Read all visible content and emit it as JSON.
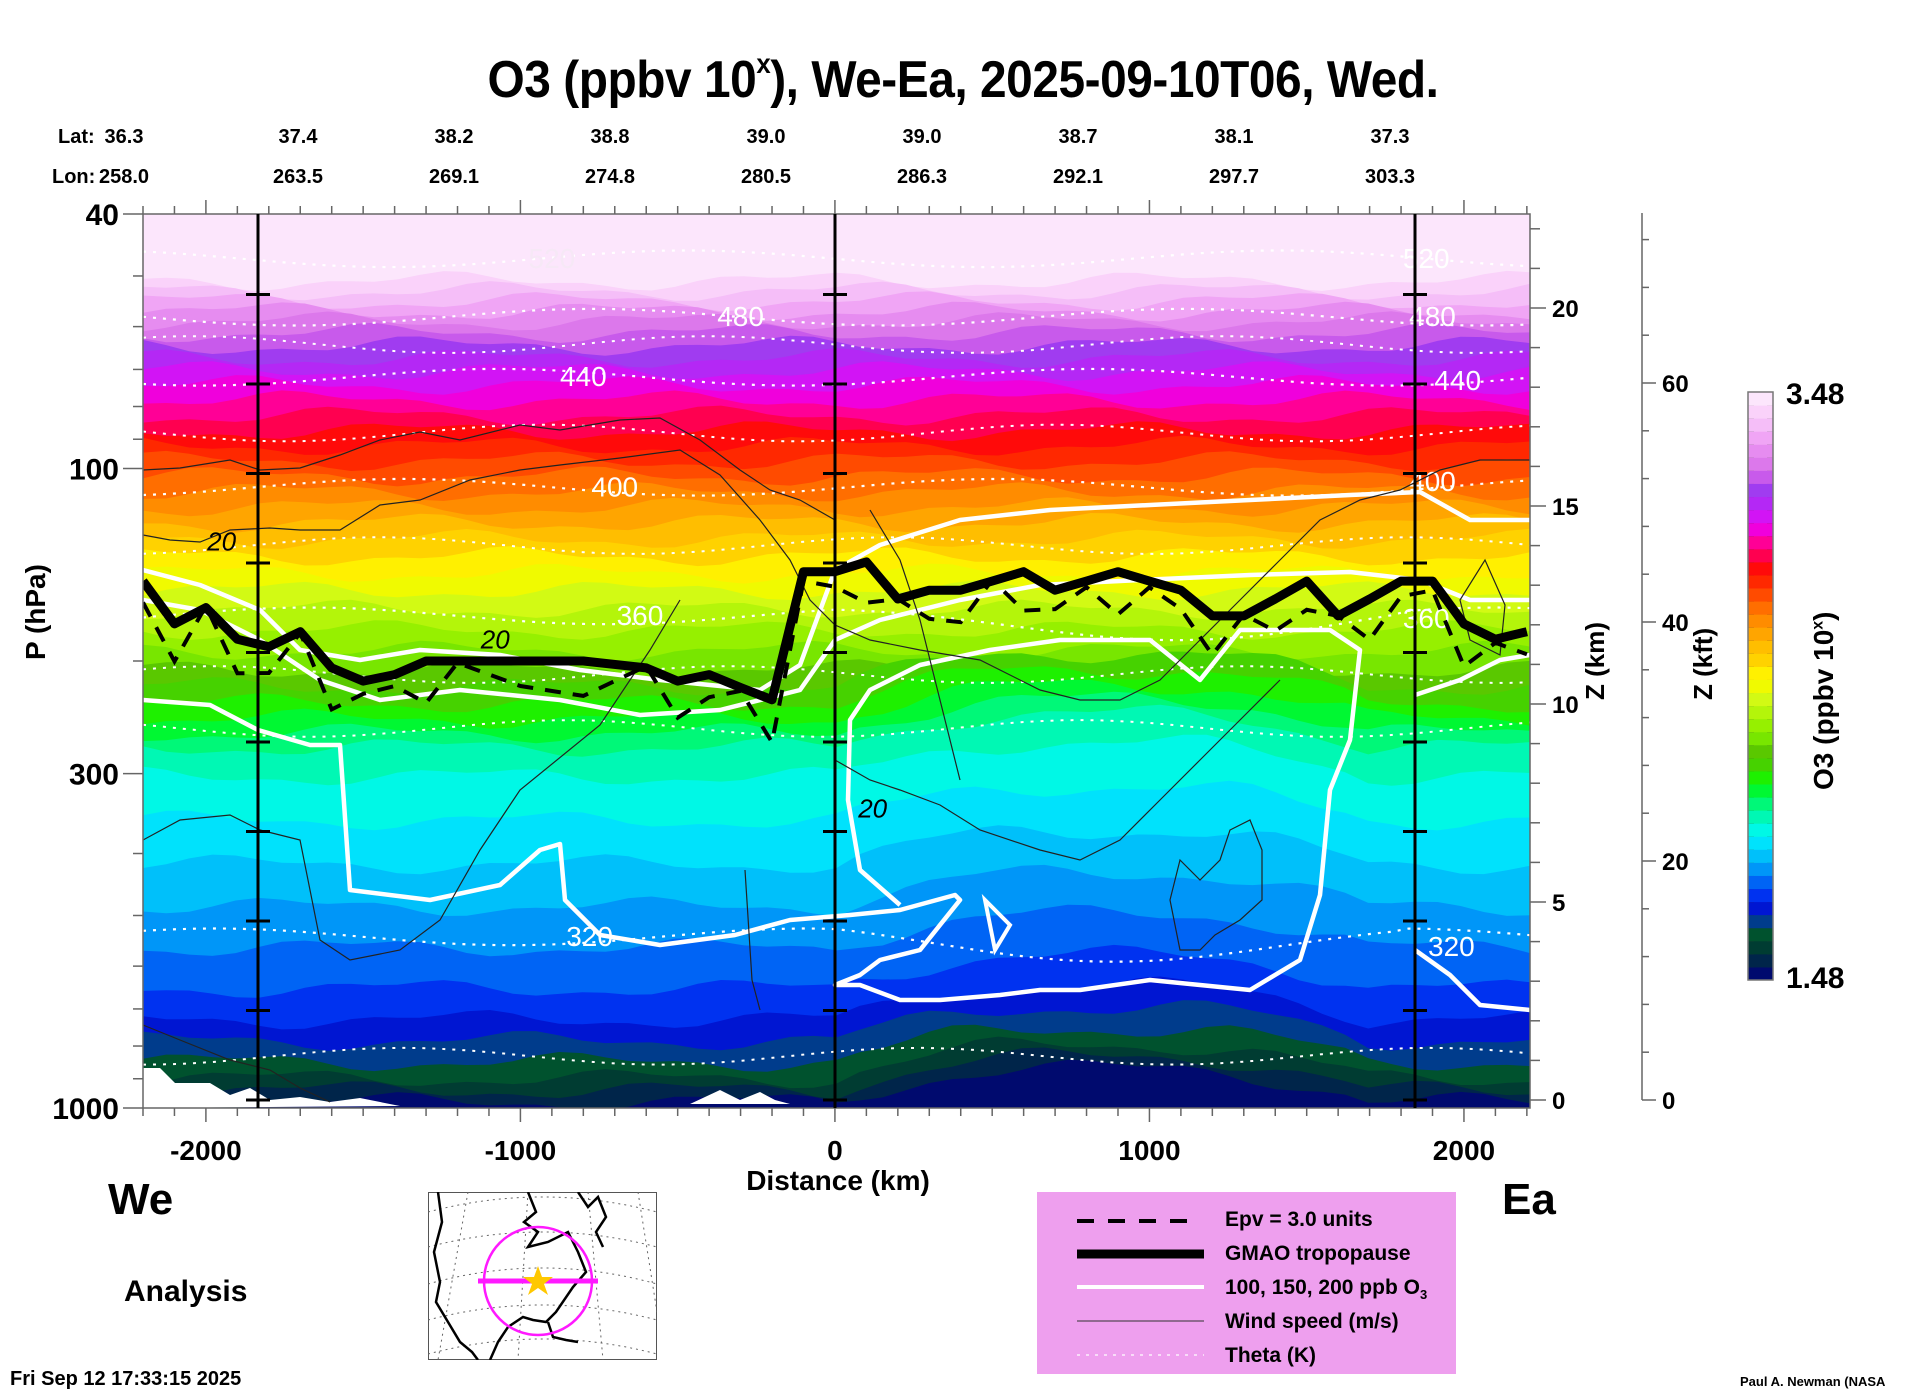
{
  "title": {
    "prefix": "O3 (ppbv 10",
    "sup": "x",
    "suffix": "), We-Ea, 2025-09-10T06, Wed."
  },
  "coords": {
    "lat_label": "Lat:",
    "lon_label": "Lon:",
    "lat": [
      "36.3",
      "37.4",
      "38.2",
      "38.8",
      "39.0",
      "39.0",
      "38.7",
      "38.1",
      "37.3"
    ],
    "lon": [
      "258.0",
      "263.5",
      "269.1",
      "274.8",
      "280.5",
      "286.3",
      "292.1",
      "297.7",
      "303.3"
    ]
  },
  "labels": {
    "west": "We",
    "east": "Ea",
    "analysis": "Analysis",
    "timestamp": "Fri Sep 12 17:33:15 2025",
    "credit": "Paul A. Newman (NASA"
  },
  "legend": {
    "items": [
      {
        "label": "Epv = 3.0 units",
        "style": "dashed-black"
      },
      {
        "label": "GMAO tropopause",
        "style": "thick-black"
      },
      {
        "label": "100, 150, 200 ppb O",
        "sub": "3",
        "style": "white"
      },
      {
        "label": "Wind speed (m/s)",
        "style": "thin-black"
      },
      {
        "label": "Theta (K)",
        "style": "dotted-white"
      }
    ],
    "background": "#ee9fee"
  },
  "colorbar": {
    "title_prefix": "O3 (ppbv 10",
    "title_sup": "x",
    "title_suffix": ")",
    "max_label": "3.48",
    "min_label": "1.48",
    "colors": [
      "#000a6e",
      "#00254a",
      "#003c32",
      "#00522e",
      "#003c8c",
      "#0016d2",
      "#0032f0",
      "#0064f5",
      "#0096f8",
      "#00c0fa",
      "#00e2fc",
      "#00f8e6",
      "#00f8b4",
      "#00f878",
      "#00f832",
      "#1ef000",
      "#46d200",
      "#5ac800",
      "#78e600",
      "#96f000",
      "#b4f50a",
      "#d2fa14",
      "#f0fa00",
      "#fff000",
      "#ffd200",
      "#ffbe00",
      "#ffa500",
      "#ff8c00",
      "#ff6e00",
      "#ff4b00",
      "#ff2800",
      "#ff0a0a",
      "#ff0050",
      "#ff0096",
      "#f000dc",
      "#d214f5",
      "#b428f5",
      "#a03cf0",
      "#c85aeb",
      "#dc78eb",
      "#e68cf0",
      "#f0a5f5",
      "#f5bef8",
      "#fad2fa",
      "#fce6fc"
    ]
  },
  "chart_data": {
    "type": "heatmap",
    "title": "O3 (ppbv 10^x), We-Ea, 2025-09-10T06, Wed.",
    "xlabel": "Distance (km)",
    "ylabel": "P (hPa)",
    "y2label": "Z (km)",
    "y3label": "Z (kft)",
    "colorbar_label": "O3 (ppbv 10^x)",
    "xlim": [
      -2200,
      2210
    ],
    "ylim": [
      1000,
      40
    ],
    "yscale": "log",
    "x_ticks": [
      -2000,
      -1000,
      0,
      1000,
      2000
    ],
    "x_tick_labels": [
      "-2000",
      "-1000",
      "0",
      "1000",
      "2000"
    ],
    "y_ticks": [
      40,
      100,
      300,
      1000
    ],
    "y_tick_labels": [
      "40",
      "100",
      "300",
      "1000"
    ],
    "z_km_ticks": [
      0,
      5,
      10,
      15,
      20
    ],
    "z_km_tick_labels": [
      "0",
      "5",
      "10",
      "15",
      "20"
    ],
    "z_kft_ticks": [
      0,
      20,
      40,
      60
    ],
    "z_kft_tick_labels": [
      "0",
      "20",
      "40",
      "60"
    ],
    "colorbar_range": [
      1.48,
      3.48
    ],
    "section_markers_km": [
      -1850,
      0,
      1850
    ],
    "theta_contours_K": [
      {
        "value": 520,
        "label": "520",
        "p_hPa": 47
      },
      {
        "value": 480,
        "label": "480",
        "p_hPa": 58
      },
      {
        "value": 440,
        "label": "440",
        "p_hPa": 72
      },
      {
        "value": 400,
        "label": "400",
        "p_hPa": 107
      },
      {
        "value": 360,
        "label": "360",
        "p_hPa": 170
      },
      {
        "value": 320,
        "label": "320",
        "p_hPa": 540
      }
    ],
    "wind_labels": [
      {
        "label": "20",
        "x_km": -1950,
        "p_hPa": 130
      },
      {
        "label": "20",
        "x_km": -1080,
        "p_hPa": 185
      },
      {
        "label": "20",
        "x_km": 120,
        "p_hPa": 340
      }
    ],
    "tropopause_hPa": {
      "x_km": [
        -2200,
        -2100,
        -2000,
        -1900,
        -1800,
        -1700,
        -1600,
        -1500,
        -1400,
        -1300,
        -1200,
        -1000,
        -800,
        -600,
        -500,
        -400,
        -300,
        -200,
        -100,
        0,
        100,
        200,
        300,
        400,
        500,
        600,
        700,
        800,
        900,
        1000,
        1100,
        1200,
        1300,
        1400,
        1500,
        1600,
        1700,
        1800,
        1900,
        2000,
        2100,
        2200
      ],
      "p": [
        150,
        175,
        165,
        185,
        190,
        180,
        205,
        215,
        210,
        200,
        200,
        200,
        200,
        205,
        215,
        210,
        220,
        230,
        145,
        145,
        140,
        160,
        155,
        155,
        150,
        145,
        155,
        150,
        145,
        150,
        155,
        170,
        170,
        160,
        150,
        170,
        160,
        150,
        150,
        175,
        185,
        180
      ]
    },
    "o3_contours_ppb": [
      100,
      150,
      200
    ],
    "epv_contour_units": 3.0
  }
}
